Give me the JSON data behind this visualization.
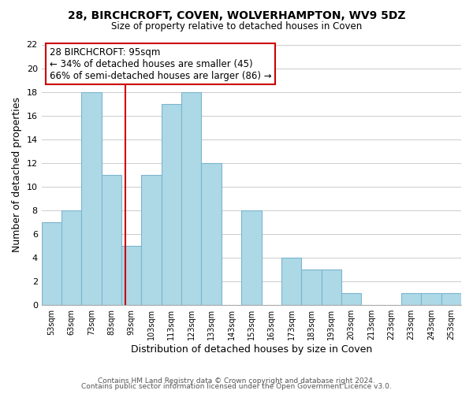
{
  "title": "28, BIRCHCROFT, COVEN, WOLVERHAMPTON, WV9 5DZ",
  "subtitle": "Size of property relative to detached houses in Coven",
  "xlabel": "Distribution of detached houses by size in Coven",
  "ylabel": "Number of detached properties",
  "bins": [
    53,
    63,
    73,
    83,
    93,
    103,
    113,
    123,
    133,
    143,
    153,
    163,
    173,
    183,
    193,
    203,
    213,
    223,
    233,
    243,
    253
  ],
  "counts": [
    7,
    8,
    18,
    11,
    5,
    11,
    17,
    18,
    12,
    0,
    8,
    0,
    4,
    3,
    3,
    1,
    0,
    0,
    1,
    1,
    1
  ],
  "bar_color": "#add8e6",
  "bar_edgecolor": "#7ab5d0",
  "property_value": 95,
  "annotation_title": "28 BIRCHCROFT: 95sqm",
  "annotation_line1": "← 34% of detached houses are smaller (45)",
  "annotation_line2": "66% of semi-detached houses are larger (86) →",
  "annotation_box_color": "#ffffff",
  "annotation_box_edgecolor": "#cc0000",
  "vline_color": "#cc0000",
  "ylim": [
    0,
    22
  ],
  "yticks": [
    0,
    2,
    4,
    6,
    8,
    10,
    12,
    14,
    16,
    18,
    20,
    22
  ],
  "footer1": "Contains HM Land Registry data © Crown copyright and database right 2024.",
  "footer2": "Contains public sector information licensed under the Open Government Licence v3.0.",
  "background_color": "#ffffff",
  "grid_color": "#cccccc"
}
